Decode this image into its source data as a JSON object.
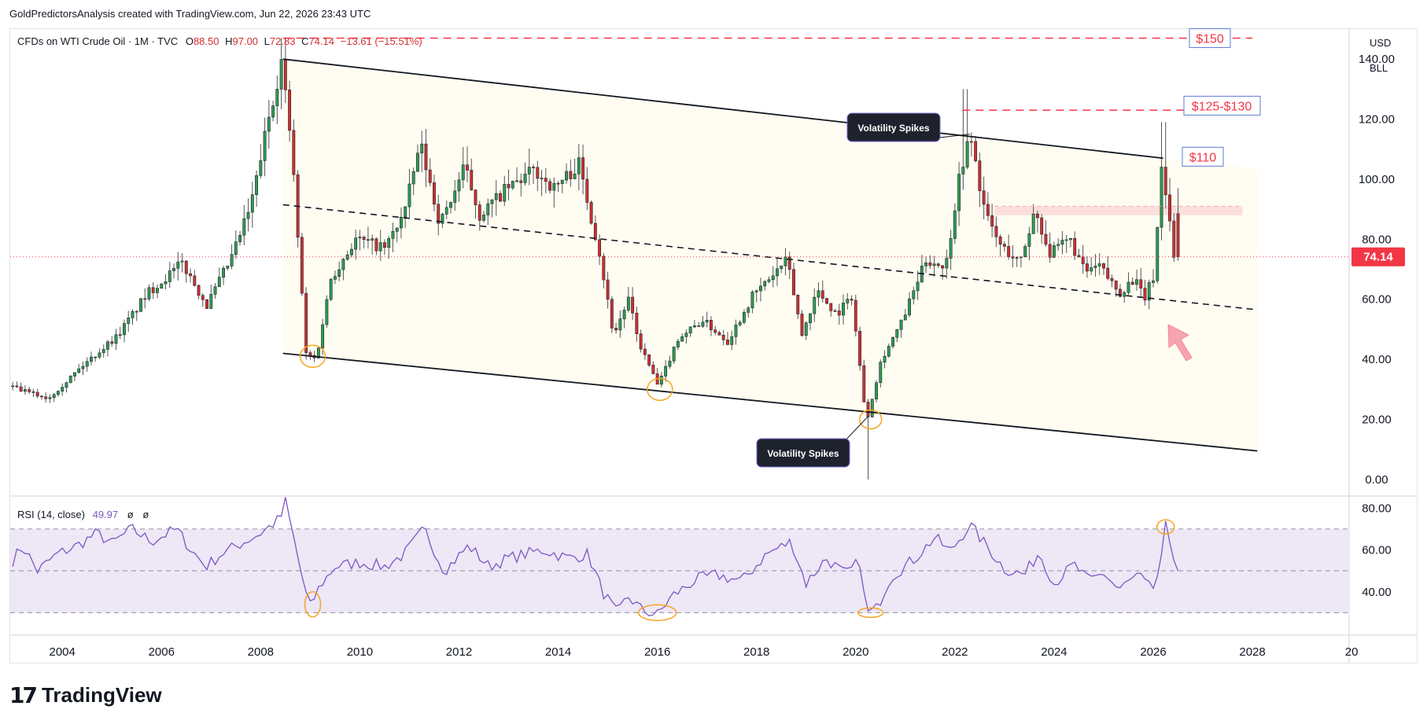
{
  "header": {
    "caption": "GoldPredictorsAnalysis created with TradingView.com, Jun 22, 2026 23:43 UTC"
  },
  "legend": {
    "symbol": "CFDs on WTI Crude Oil · 1M · TVC",
    "o_label": "O",
    "o_value": "88.50",
    "h_label": "H",
    "h_value": "97.00",
    "l_label": "L",
    "l_value": "72.83",
    "c_label": "C",
    "c_value": "74.14",
    "change": "−13.61 (−15.51%)"
  },
  "currency": {
    "line1": "USD",
    "line2": "BLL"
  },
  "price_badge": {
    "value": "74.14",
    "color": "#f23645"
  },
  "annotations": {
    "label_150": "$150",
    "label_125": "$125-$130",
    "label_110": "$110",
    "callout_top": "Volatility Spikes",
    "callout_bottom": "Volatility Spikes"
  },
  "rsi_legend": {
    "title": "RSI (14, close)",
    "value": "49.97",
    "extra1": "ø",
    "extra2": "ø"
  },
  "footer": {
    "brand": "TradingView"
  },
  "colors": {
    "up": "#26a69a",
    "up_body": "#2e9e4e",
    "down": "#d32f2f",
    "rsi_line": "#7e57c2",
    "rsi_band": "#ede7f6",
    "dashed_red": "#f23645"
  },
  "chart_data": {
    "type": "candlestick",
    "price_axis": {
      "ticks": [
        "0.00",
        "20.00",
        "40.00",
        "60.00",
        "80.00",
        "100.00",
        "120.00",
        "140.00"
      ],
      "ylim": [
        -5,
        150
      ]
    },
    "rsi_axis": {
      "ticks": [
        "40.00",
        "60.00",
        "80.00"
      ],
      "ylim": [
        20,
        85
      ],
      "levels": [
        30,
        50,
        70
      ]
    },
    "x_axis": {
      "ticks": [
        "2004",
        "2006",
        "2008",
        "2010",
        "2012",
        "2014",
        "2016",
        "2018",
        "2020",
        "2022",
        "2024",
        "2026",
        "2028",
        "20"
      ],
      "xlim": [
        2002.95,
        2029.95
      ]
    },
    "price_anchors": [
      [
        2003.0,
        31
      ],
      [
        2003.8,
        27
      ],
      [
        2004.5,
        38
      ],
      [
        2005.2,
        48
      ],
      [
        2005.8,
        62
      ],
      [
        2006.5,
        72
      ],
      [
        2007.0,
        58
      ],
      [
        2007.5,
        74
      ],
      [
        2007.9,
        92
      ],
      [
        2008.3,
        125
      ],
      [
        2008.5,
        139
      ],
      [
        2008.7,
        112
      ],
      [
        2008.9,
        65
      ],
      [
        2009.0,
        42
      ],
      [
        2009.2,
        40
      ],
      [
        2009.5,
        67
      ],
      [
        2010.0,
        80
      ],
      [
        2010.6,
        77
      ],
      [
        2011.0,
        90
      ],
      [
        2011.3,
        112
      ],
      [
        2011.7,
        85
      ],
      [
        2012.2,
        104
      ],
      [
        2012.5,
        88
      ],
      [
        2013.0,
        96
      ],
      [
        2013.6,
        103
      ],
      [
        2014.0,
        97
      ],
      [
        2014.5,
        105
      ],
      [
        2014.9,
        77
      ],
      [
        2015.2,
        48
      ],
      [
        2015.5,
        60
      ],
      [
        2015.7,
        46
      ],
      [
        2016.1,
        31
      ],
      [
        2016.5,
        47
      ],
      [
        2017.0,
        53
      ],
      [
        2017.5,
        46
      ],
      [
        2018.0,
        61
      ],
      [
        2018.7,
        73
      ],
      [
        2019.0,
        48
      ],
      [
        2019.3,
        63
      ],
      [
        2019.7,
        55
      ],
      [
        2020.0,
        61
      ],
      [
        2020.3,
        19
      ],
      [
        2020.6,
        40
      ],
      [
        2021.0,
        52
      ],
      [
        2021.5,
        73
      ],
      [
        2021.9,
        71
      ],
      [
        2022.2,
        104
      ],
      [
        2022.4,
        114
      ],
      [
        2022.7,
        88
      ],
      [
        2023.0,
        78
      ],
      [
        2023.4,
        72
      ],
      [
        2023.7,
        90
      ],
      [
        2024.0,
        75
      ],
      [
        2024.4,
        80
      ],
      [
        2024.7,
        69
      ],
      [
        2025.0,
        71
      ],
      [
        2025.4,
        62
      ],
      [
        2025.7,
        67
      ],
      [
        2025.9,
        60
      ],
      [
        2026.1,
        68
      ],
      [
        2026.25,
        104
      ],
      [
        2026.4,
        88.5
      ],
      [
        2026.5,
        74.14
      ]
    ],
    "rsi_anchors": [
      [
        2003.0,
        55
      ],
      [
        2003.2,
        62
      ],
      [
        2003.5,
        50
      ],
      [
        2003.9,
        58
      ],
      [
        2004.3,
        62
      ],
      [
        2004.7,
        68
      ],
      [
        2005.0,
        63
      ],
      [
        2005.4,
        70
      ],
      [
        2005.8,
        64
      ],
      [
        2006.3,
        70
      ],
      [
        2006.6,
        60
      ],
      [
        2006.9,
        52
      ],
      [
        2007.2,
        58
      ],
      [
        2007.6,
        63
      ],
      [
        2008.0,
        68
      ],
      [
        2008.4,
        75
      ],
      [
        2008.5,
        83
      ],
      [
        2008.7,
        62
      ],
      [
        2008.9,
        40
      ],
      [
        2009.0,
        33
      ],
      [
        2009.2,
        43
      ],
      [
        2009.5,
        52
      ],
      [
        2010.0,
        54
      ],
      [
        2010.5,
        52
      ],
      [
        2010.9,
        58
      ],
      [
        2011.3,
        70
      ],
      [
        2011.7,
        50
      ],
      [
        2012.2,
        62
      ],
      [
        2012.6,
        52
      ],
      [
        2013.0,
        56
      ],
      [
        2013.7,
        60
      ],
      [
        2014.2,
        56
      ],
      [
        2014.6,
        58
      ],
      [
        2014.9,
        40
      ],
      [
        2015.2,
        29
      ],
      [
        2015.4,
        38
      ],
      [
        2015.7,
        31
      ],
      [
        2016.0,
        29
      ],
      [
        2016.3,
        38
      ],
      [
        2016.8,
        46
      ],
      [
        2017.2,
        48
      ],
      [
        2017.7,
        45
      ],
      [
        2018.2,
        58
      ],
      [
        2018.7,
        64
      ],
      [
        2019.0,
        44
      ],
      [
        2019.4,
        56
      ],
      [
        2019.8,
        48
      ],
      [
        2020.1,
        55
      ],
      [
        2020.2,
        30
      ],
      [
        2020.4,
        31
      ],
      [
        2020.7,
        47
      ],
      [
        2021.2,
        56
      ],
      [
        2021.6,
        66
      ],
      [
        2021.9,
        59
      ],
      [
        2022.3,
        72
      ],
      [
        2022.6,
        63
      ],
      [
        2023.0,
        51
      ],
      [
        2023.4,
        48
      ],
      [
        2023.7,
        59
      ],
      [
        2024.0,
        44
      ],
      [
        2024.4,
        53
      ],
      [
        2024.7,
        45
      ],
      [
        2025.0,
        49
      ],
      [
        2025.3,
        41
      ],
      [
        2025.7,
        48
      ],
      [
        2025.9,
        42
      ],
      [
        2026.0,
        42
      ],
      [
        2026.15,
        52
      ],
      [
        2026.25,
        71
      ],
      [
        2026.4,
        59
      ],
      [
        2026.5,
        49.97
      ]
    ],
    "channel_upper": {
      "x": [
        2008.45,
        2026.2
      ],
      "y": [
        140,
        107
      ]
    },
    "channel_lower": {
      "x": [
        2008.45,
        2028.1
      ],
      "y": [
        42,
        9.5
      ]
    },
    "channel_mid_dashed": {
      "x": [
        2008.45,
        2028.1
      ],
      "y": [
        91.5,
        56.5
      ]
    },
    "level_150": {
      "x": [
        2008.45,
        2028.0
      ],
      "y": 147
    },
    "level_125": {
      "x": [
        2022.15,
        2027.6
      ],
      "y": 123
    },
    "zone_90": {
      "x": [
        2022.8,
        2027.8
      ],
      "y": [
        88,
        91
      ]
    }
  }
}
